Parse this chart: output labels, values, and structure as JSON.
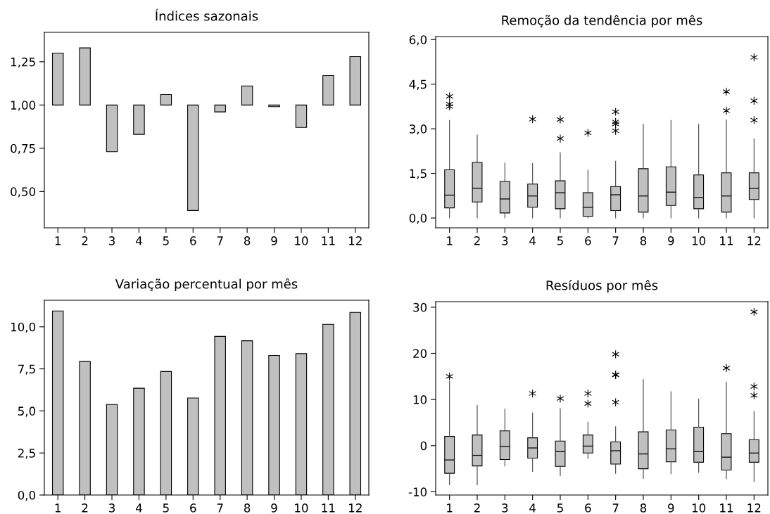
{
  "chart_data": [
    {
      "type": "bar",
      "title": "Índices sazonais",
      "categories": [
        "1",
        "2",
        "3",
        "4",
        "5",
        "6",
        "7",
        "8",
        "9",
        "10",
        "11",
        "12"
      ],
      "base": [
        1,
        1,
        1,
        1,
        1,
        1,
        1,
        1,
        1,
        1,
        1,
        1
      ],
      "values": [
        0.3,
        0.33,
        -0.27,
        -0.17,
        0.06,
        -0.61,
        -0.04,
        0.11,
        -0.01,
        -0.13,
        0.17,
        0.28
      ],
      "color": "#c0c0c0",
      "ylim": [
        0.29,
        1.42
      ],
      "yticks": [
        {
          "value": 0.5,
          "label": "0,50"
        },
        {
          "value": 0.75,
          "label": "0,75"
        },
        {
          "value": 1.0,
          "label": "1,00"
        },
        {
          "value": 1.25,
          "label": "1,25"
        }
      ],
      "grid": false,
      "legend": false
    },
    {
      "type": "box",
      "title": "Remoção da tendência por mês",
      "categories": [
        "1",
        "2",
        "3",
        "4",
        "5",
        "6",
        "7",
        "8",
        "9",
        "10",
        "11",
        "12"
      ],
      "color": "#c0c0c0",
      "marker": "star",
      "ylim": [
        -0.33,
        6.1
      ],
      "yticks": [
        {
          "value": 0,
          "label": "0,0"
        },
        {
          "value": 1.5,
          "label": "1,5"
        },
        {
          "value": 3,
          "label": "3,0"
        },
        {
          "value": 4.5,
          "label": "4,5"
        },
        {
          "value": 6,
          "label": "6,0"
        }
      ],
      "grid": false,
      "legend": false,
      "boxes": [
        {
          "low": 0,
          "q1": 0.34,
          "median": 0.77,
          "q3": 1.62,
          "high": 3.28,
          "outliers": [
            4.09,
            3.83,
            3.75
          ]
        },
        {
          "low": 0,
          "q1": 0.54,
          "median": 1.0,
          "q3": 1.87,
          "high": 2.79
        },
        {
          "low": 0,
          "q1": 0.17,
          "median": 0.64,
          "q3": 1.23,
          "high": 1.85
        },
        {
          "low": 0,
          "q1": 0.36,
          "median": 0.74,
          "q3": 1.14,
          "high": 1.83,
          "outliers": [
            3.32
          ]
        },
        {
          "low": 0,
          "q1": 0.31,
          "median": 0.85,
          "q3": 1.25,
          "high": 2.19,
          "outliers": [
            3.31,
            2.67
          ]
        },
        {
          "low": 0,
          "q1": 0.06,
          "median": 0.36,
          "q3": 0.85,
          "high": 1.61,
          "outliers": [
            2.86
          ]
        },
        {
          "low": 0,
          "q1": 0.25,
          "median": 0.78,
          "q3": 1.06,
          "high": 1.91,
          "outliers": [
            3.57,
            3.23,
            3.16,
            2.93
          ]
        },
        {
          "low": 0,
          "q1": 0.2,
          "median": 0.74,
          "q3": 1.66,
          "high": 3.15
        },
        {
          "low": 0,
          "q1": 0.42,
          "median": 0.87,
          "q3": 1.72,
          "high": 3.28
        },
        {
          "low": 0,
          "q1": 0.31,
          "median": 0.69,
          "q3": 1.45,
          "high": 3.15
        },
        {
          "low": 0,
          "q1": 0.2,
          "median": 0.74,
          "q3": 1.52,
          "high": 3.3,
          "outliers": [
            4.25,
            3.61
          ]
        },
        {
          "low": 0,
          "q1": 0.62,
          "median": 1.0,
          "q3": 1.52,
          "high": 2.66,
          "outliers": [
            5.4,
            3.94,
            3.29
          ]
        }
      ]
    },
    {
      "type": "bar",
      "title": "Variação percentual por mês",
      "categories": [
        "1",
        "2",
        "3",
        "4",
        "5",
        "6",
        "7",
        "8",
        "9",
        "10",
        "11",
        "12"
      ],
      "values": [
        10.94,
        7.94,
        5.38,
        6.35,
        7.34,
        5.77,
        9.43,
        9.17,
        8.3,
        8.41,
        10.15,
        10.86
      ],
      "color": "#c0c0c0",
      "ylim": [
        0,
        11.58
      ],
      "yticks": [
        {
          "value": 0,
          "label": "0,0"
        },
        {
          "value": 2.5,
          "label": "2,5"
        },
        {
          "value": 5,
          "label": "5,0"
        },
        {
          "value": 7.5,
          "label": "7,5"
        },
        {
          "value": 10,
          "label": "10,0"
        }
      ],
      "grid": false,
      "legend": false
    },
    {
      "type": "box",
      "title": "Resíduos por mês",
      "categories": [
        "1",
        "2",
        "3",
        "4",
        "5",
        "6",
        "7",
        "8",
        "9",
        "10",
        "11",
        "12"
      ],
      "color": "#c0c0c0",
      "marker": "star",
      "ylim": [
        -10.7,
        31.2
      ],
      "yticks": [
        -10,
        0,
        10,
        20,
        30
      ],
      "grid": false,
      "legend": false,
      "boxes": [
        {
          "low": -8.5,
          "q1": -6.0,
          "median": -3.1,
          "q3": 2.0,
          "high": 13.9,
          "outliers": [
            15.0
          ]
        },
        {
          "low": -8.5,
          "q1": -4.4,
          "median": -2.1,
          "q3": 2.3,
          "high": 8.7
        },
        {
          "low": -4.4,
          "q1": -3.0,
          "median": -0.2,
          "q3": 3.2,
          "high": 7.9
        },
        {
          "low": -5.6,
          "q1": -2.7,
          "median": -0.5,
          "q3": 1.7,
          "high": 7.1,
          "outliers": [
            11.3
          ]
        },
        {
          "low": -6.5,
          "q1": -4.5,
          "median": -1.3,
          "q3": 1.0,
          "high": 8.0,
          "outliers": [
            10.2
          ]
        },
        {
          "low": -2.8,
          "q1": -1.6,
          "median": -0.1,
          "q3": 2.3,
          "high": 5.1,
          "outliers": [
            11.3,
            9.1
          ]
        },
        {
          "low": -6.0,
          "q1": -4.0,
          "median": -1.1,
          "q3": 0.8,
          "high": 4.1,
          "outliers": [
            19.8,
            15.4,
            15.3,
            9.4
          ]
        },
        {
          "low": -7.1,
          "q1": -5.0,
          "median": -1.8,
          "q3": 3.0,
          "high": 14.3
        },
        {
          "low": -6.1,
          "q1": -3.5,
          "median": -0.7,
          "q3": 3.4,
          "high": 11.7
        },
        {
          "low": -5.8,
          "q1": -3.6,
          "median": -1.3,
          "q3": 4.0,
          "high": 10.1
        },
        {
          "low": -7.2,
          "q1": -5.3,
          "median": -2.5,
          "q3": 2.6,
          "high": 13.8,
          "outliers": [
            16.8
          ]
        },
        {
          "low": -7.8,
          "q1": -3.6,
          "median": -1.6,
          "q3": 1.3,
          "high": 7.4,
          "outliers": [
            29.0,
            12.8,
            10.9
          ]
        }
      ]
    }
  ]
}
